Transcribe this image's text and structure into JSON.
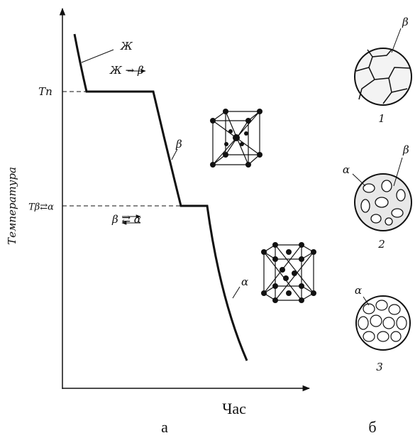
{
  "axes": {
    "y_label": "Температура",
    "x_label": "Час"
  },
  "levels": [
    {
      "label": "Tп"
    },
    {
      "label": "Tβ⇄α"
    }
  ],
  "curve_labels": [
    "Ж",
    "Ж → β",
    "β",
    "β ⇄ α",
    "α"
  ],
  "micrographs": [
    {
      "number": "1",
      "phases": [
        "β"
      ]
    },
    {
      "number": "2",
      "phases": [
        "α",
        "β"
      ]
    },
    {
      "number": "3",
      "phases": [
        "α"
      ]
    }
  ],
  "panels": [
    "а",
    "б"
  ]
}
